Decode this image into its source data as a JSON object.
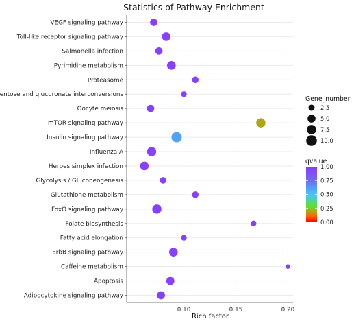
{
  "chart_data": {
    "type": "scatter",
    "title": "Statistics of Pathway Enrichment",
    "xlabel": "Rich factor",
    "ylabel": "",
    "xlim": [
      0.045,
      0.205
    ],
    "xticks": [
      0.1,
      0.15,
      0.2
    ],
    "xtick_labels": [
      "0.10",
      "0.15",
      "0.20"
    ],
    "grid": true,
    "categories": [
      "VEGF signaling pathway",
      "Toll-like receptor signaling pathway",
      "Salmonella infection",
      "Pyrimidine metabolism",
      "Proteasome",
      "Pentose and glucuronate interconversions",
      "Oocyte meiosis",
      "mTOR signaling pathway",
      "Insulin signaling pathway",
      "Influenza A",
      "Herpes simplex infection",
      "Glycolysis / Gluconeogenesis",
      "Glutathione metabolism",
      "FoxO signaling pathway",
      "Folate biosynthesis",
      "Fatty acid elongation",
      "ErbB signaling pathway",
      "Caffeine metabolism",
      "Apoptosis",
      "Adipocytokine signaling pathway"
    ],
    "points": [
      {
        "pathway": "VEGF signaling pathway",
        "rich_factor": 0.071,
        "gene_number": 4,
        "qvalue": 0.98
      },
      {
        "pathway": "Toll-like receptor signaling pathway",
        "rich_factor": 0.083,
        "gene_number": 6,
        "qvalue": 0.98
      },
      {
        "pathway": "Salmonella infection",
        "rich_factor": 0.076,
        "gene_number": 4,
        "qvalue": 0.98
      },
      {
        "pathway": "Pyrimidine metabolism",
        "rich_factor": 0.088,
        "gene_number": 6,
        "qvalue": 0.98
      },
      {
        "pathway": "Proteasome",
        "rich_factor": 0.111,
        "gene_number": 3,
        "qvalue": 0.98
      },
      {
        "pathway": "Pentose and glucuronate interconversions",
        "rich_factor": 0.1,
        "gene_number": 2,
        "qvalue": 0.98
      },
      {
        "pathway": "Oocyte meiosis",
        "rich_factor": 0.068,
        "gene_number": 4,
        "qvalue": 0.98
      },
      {
        "pathway": "mTOR signaling pathway",
        "rich_factor": 0.174,
        "gene_number": 7,
        "qvalue": 0.2
      },
      {
        "pathway": "Insulin signaling pathway",
        "rich_factor": 0.093,
        "gene_number": 9,
        "qvalue": 0.6
      },
      {
        "pathway": "Influenza A",
        "rich_factor": 0.069,
        "gene_number": 7,
        "qvalue": 0.98
      },
      {
        "pathway": "Herpes simplex infection",
        "rich_factor": 0.062,
        "gene_number": 6,
        "qvalue": 0.98
      },
      {
        "pathway": "Glycolysis / Gluconeogenesis",
        "rich_factor": 0.08,
        "gene_number": 3,
        "qvalue": 0.98
      },
      {
        "pathway": "Glutathione metabolism",
        "rich_factor": 0.111,
        "gene_number": 3,
        "qvalue": 0.98
      },
      {
        "pathway": "FoxO signaling pathway",
        "rich_factor": 0.074,
        "gene_number": 7,
        "qvalue": 0.98
      },
      {
        "pathway": "Folate biosynthesis",
        "rich_factor": 0.167,
        "gene_number": 2,
        "qvalue": 0.98
      },
      {
        "pathway": "Fatty acid elongation",
        "rich_factor": 0.1,
        "gene_number": 2,
        "qvalue": 0.98
      },
      {
        "pathway": "ErbB signaling pathway",
        "rich_factor": 0.09,
        "gene_number": 6,
        "qvalue": 0.98
      },
      {
        "pathway": "Caffeine metabolism",
        "rich_factor": 0.2,
        "gene_number": 1,
        "qvalue": 0.98
      },
      {
        "pathway": "Apoptosis",
        "rich_factor": 0.087,
        "gene_number": 5,
        "qvalue": 0.98
      },
      {
        "pathway": "Adipocytokine signaling pathway",
        "rich_factor": 0.078,
        "gene_number": 5,
        "qvalue": 0.98
      }
    ],
    "size_legend": {
      "title": "Gene_number",
      "breaks": [
        2.5,
        5.0,
        7.5,
        10.0
      ],
      "labels": [
        "2.5",
        "5.0",
        "7.5",
        "10.0"
      ]
    },
    "color_legend": {
      "title": "qvalue",
      "breaks": [
        1.0,
        0.75,
        0.5,
        0.25,
        0.0
      ],
      "labels": [
        "1.00",
        "0.75",
        "0.50",
        "0.25",
        "0.00"
      ],
      "colors_high_to_low": [
        "#8b3cff",
        "#6f6cf0",
        "#41c6ff",
        "#60e02a",
        "#ff6a00",
        "#ff0000"
      ],
      "range": [
        0.0,
        1.0
      ]
    },
    "legend_position": "right",
    "panel_background": "#ffffff",
    "grid_color": "#ebebeb"
  }
}
